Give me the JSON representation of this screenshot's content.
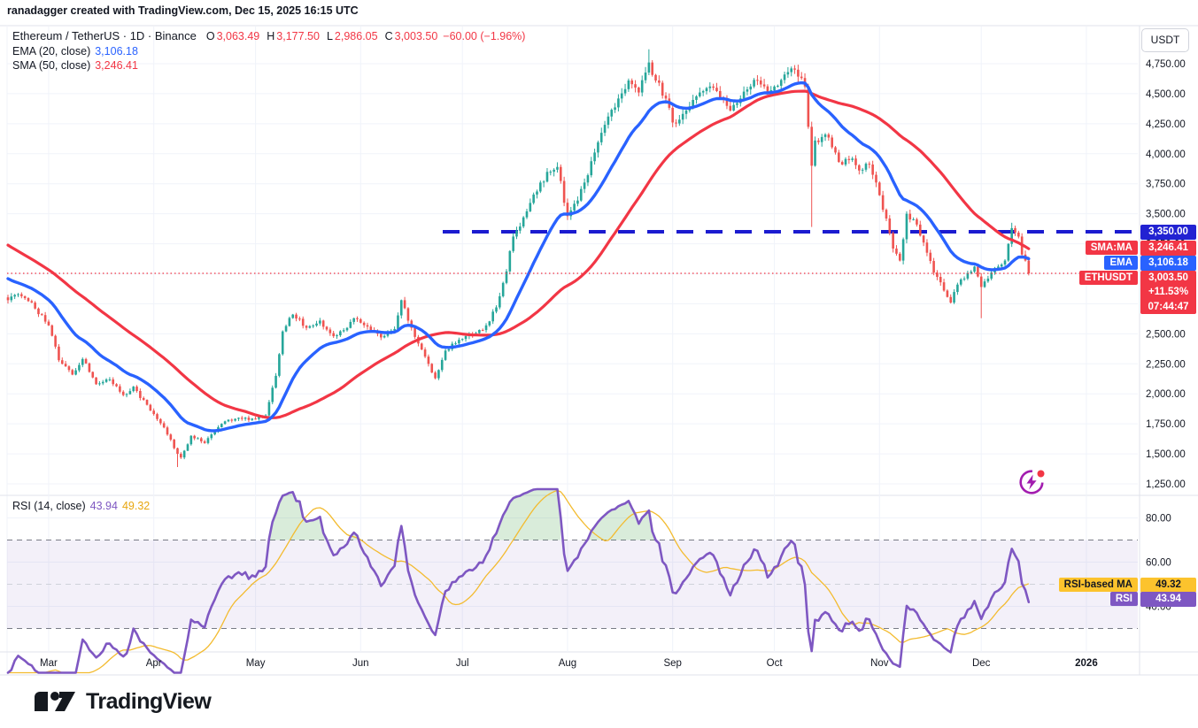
{
  "attribution": "ranadagger created with TradingView.com, Dec 15, 2025 16:15 UTC",
  "legend": {
    "title": "Ethereum / TetherUS · 1D · Binance",
    "o_label": "O",
    "o": "3,063.49",
    "h_label": "H",
    "h": "3,177.50",
    "l_label": "L",
    "l": "2,986.05",
    "c_label": "C",
    "c": "3,003.50",
    "change": "−60.00 (−1.96%)",
    "ema_name": "EMA (20, close)",
    "ema_value": "3,106.18",
    "sma_name": "SMA (50, close)",
    "sma_value": "3,246.41"
  },
  "rsi_legend": {
    "name": "RSI (14, close)",
    "rsi_value": "43.94",
    "ma_value": "49.32"
  },
  "scale": {
    "currency": "USDT"
  },
  "labels": {
    "level": "3,350.00",
    "sma_tag": "SMA:MA",
    "sma_value": "3,246.41",
    "ema_tag": "EMA",
    "ema_value": "3,106.18",
    "symbol_tag": "ETHUSDT",
    "last_price": "3,003.50",
    "session_change": "+11.53%",
    "countdown": "07:44:47",
    "rsi_ma_tag": "RSI-based MA",
    "rsi_ma_value": "49.32",
    "rsi_tag": "RSI",
    "rsi_value": "43.94"
  },
  "footer": {
    "brand": "TradingView"
  },
  "colors": {
    "up": "#26a69a",
    "down": "#ef5350",
    "ema": "#2962ff",
    "sma": "#f23645",
    "level_line": "#1b1bd0",
    "last_price_line": "#f23645",
    "rsi": "#7e57c2",
    "rsi_ma": "#f3bb2f",
    "grid": "#f0f3fa",
    "separator": "#e0e3eb",
    "band_dash": "#787b86",
    "text": "#131722",
    "overbought_fill": "rgba(67,160,71,0.20)",
    "rsi_band_fill": "rgba(126,87,194,0.09)"
  },
  "chart_data": {
    "type": "candlestick",
    "title": "Ethereum / TetherUS, 1D, Binance",
    "symbol": "ETHUSDT",
    "interval": "1D",
    "exchange": "Binance",
    "last_bar": {
      "open": 3063.49,
      "high": 3177.5,
      "low": 2986.05,
      "close": 3003.5,
      "change": -60.0,
      "change_pct": -1.96
    },
    "indicators": {
      "ema20": 3106.18,
      "sma50": 3246.41,
      "rsi14": 43.94,
      "rsi_based_ma": 49.32
    },
    "levels": {
      "horizontal_dashed_line": 3350.0,
      "last_price_dotted_line": 3003.5
    },
    "y_axis": {
      "min": 1250,
      "max": 4750,
      "tick_step": 250,
      "currency": "USDT"
    },
    "rsi_axis": {
      "ticks": [
        80,
        60,
        40
      ],
      "upper_band": 70,
      "lower_band": 30,
      "mid": 50
    },
    "month_ticks": [
      {
        "label": "Mar",
        "day": 12
      },
      {
        "label": "Apr",
        "day": 43
      },
      {
        "label": "May",
        "day": 73
      },
      {
        "label": "Jun",
        "day": 104
      },
      {
        "label": "Jul",
        "day": 134
      },
      {
        "label": "Aug",
        "day": 165
      },
      {
        "label": "Sep",
        "day": 196
      },
      {
        "label": "Oct",
        "day": 226
      },
      {
        "label": "Nov",
        "day": 257
      },
      {
        "label": "Dec",
        "day": 287
      },
      {
        "label": "2026",
        "day": 318,
        "bold": true
      }
    ],
    "days": 302,
    "noise": 0.008,
    "history": {
      "days": 60,
      "start": 3900
    },
    "close_anchors": [
      [
        0,
        2780
      ],
      [
        3,
        2830
      ],
      [
        7,
        2760
      ],
      [
        12,
        2570
      ],
      [
        15,
        2280
      ],
      [
        19,
        2160
      ],
      [
        22,
        2290
      ],
      [
        26,
        2080
      ],
      [
        30,
        2120
      ],
      [
        34,
        1990
      ],
      [
        37,
        2060
      ],
      [
        42,
        1860
      ],
      [
        46,
        1720
      ],
      [
        50,
        1500
      ],
      [
        51,
        1470
      ],
      [
        54,
        1650
      ],
      [
        58,
        1590
      ],
      [
        63,
        1750
      ],
      [
        68,
        1800
      ],
      [
        73,
        1790
      ],
      [
        76,
        1820
      ],
      [
        79,
        2150
      ],
      [
        81,
        2520
      ],
      [
        84,
        2660
      ],
      [
        88,
        2550
      ],
      [
        92,
        2610
      ],
      [
        96,
        2480
      ],
      [
        99,
        2530
      ],
      [
        102,
        2630
      ],
      [
        106,
        2560
      ],
      [
        110,
        2470
      ],
      [
        114,
        2540
      ],
      [
        116,
        2780
      ],
      [
        119,
        2550
      ],
      [
        123,
        2310
      ],
      [
        126,
        2130
      ],
      [
        129,
        2360
      ],
      [
        133,
        2450
      ],
      [
        137,
        2490
      ],
      [
        141,
        2570
      ],
      [
        144,
        2720
      ],
      [
        147,
        3020
      ],
      [
        149,
        3310
      ],
      [
        152,
        3470
      ],
      [
        155,
        3660
      ],
      [
        157,
        3760
      ],
      [
        160,
        3850
      ],
      [
        162,
        3890
      ],
      [
        165,
        3480
      ],
      [
        168,
        3610
      ],
      [
        170,
        3760
      ],
      [
        173,
        4010
      ],
      [
        177,
        4310
      ],
      [
        180,
        4460
      ],
      [
        183,
        4610
      ],
      [
        186,
        4510
      ],
      [
        189,
        4760
      ],
      [
        191,
        4610
      ],
      [
        194,
        4460
      ],
      [
        196,
        4260
      ],
      [
        200,
        4360
      ],
      [
        204,
        4510
      ],
      [
        207,
        4560
      ],
      [
        211,
        4450
      ],
      [
        213,
        4360
      ],
      [
        216,
        4460
      ],
      [
        219,
        4560
      ],
      [
        221,
        4610
      ],
      [
        224,
        4510
      ],
      [
        226,
        4560
      ],
      [
        229,
        4660
      ],
      [
        232,
        4700
      ],
      [
        235,
        4560
      ],
      [
        237,
        3900
      ],
      [
        238,
        4110
      ],
      [
        241,
        4160
      ],
      [
        244,
        4010
      ],
      [
        246,
        3910
      ],
      [
        249,
        3960
      ],
      [
        251,
        3860
      ],
      [
        254,
        3910
      ],
      [
        256,
        3760
      ],
      [
        259,
        3460
      ],
      [
        261,
        3210
      ],
      [
        263,
        3110
      ],
      [
        265,
        3500
      ],
      [
        268,
        3410
      ],
      [
        270,
        3260
      ],
      [
        273,
        3010
      ],
      [
        276,
        2860
      ],
      [
        278,
        2760
      ],
      [
        280,
        2910
      ],
      [
        282,
        2960
      ],
      [
        285,
        3060
      ],
      [
        287,
        2890
      ],
      [
        289,
        2960
      ],
      [
        292,
        3060
      ],
      [
        294,
        3110
      ],
      [
        296,
        3380
      ],
      [
        298,
        3310
      ],
      [
        299,
        3160
      ],
      [
        300,
        3110
      ],
      [
        301,
        3003.5
      ]
    ],
    "wick_overrides": [
      {
        "day": 50,
        "low": 1390
      },
      {
        "day": 189,
        "high": 4870
      },
      {
        "day": 237,
        "low": 3390
      },
      {
        "day": 287,
        "low": 2630
      },
      {
        "day": 296,
        "high": 3425
      }
    ]
  }
}
